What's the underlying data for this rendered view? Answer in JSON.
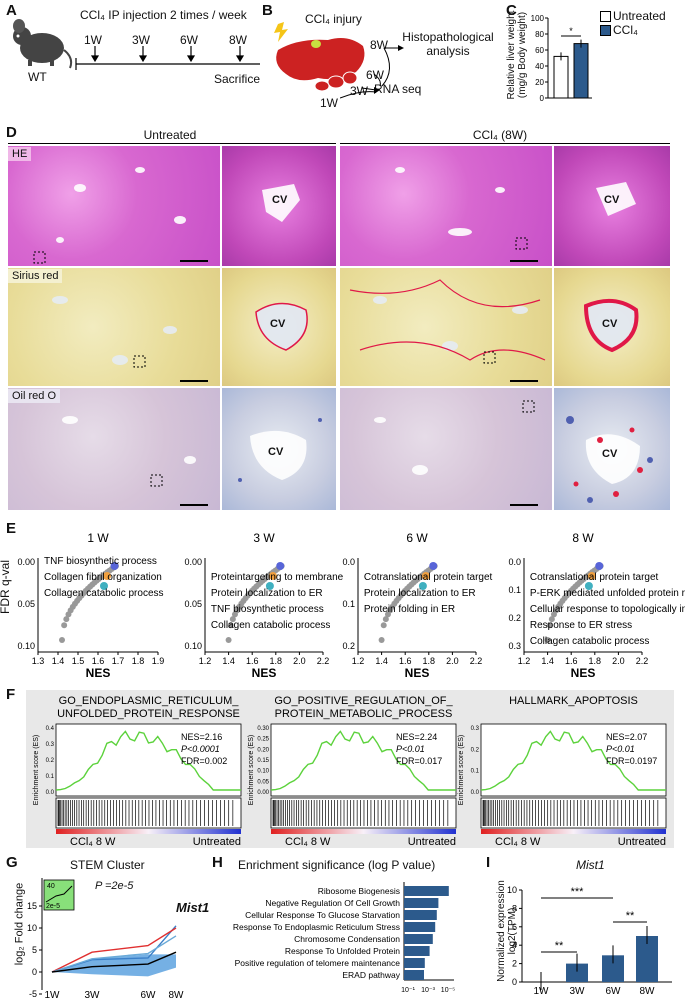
{
  "panels": {
    "A": "A",
    "B": "B",
    "C": "C",
    "D": "D",
    "E": "E",
    "F": "F",
    "G": "G",
    "H": "H",
    "I": "I"
  },
  "a": {
    "title": "CCl₄ IP injection 2 times / week",
    "mouse_label": "WT",
    "timepoints": [
      "1W",
      "3W",
      "6W",
      "8W"
    ],
    "end_label": "Sacrifice"
  },
  "b": {
    "injury": "CCl₄ injury",
    "histo": "Histopathological analysis",
    "rna": "RNA seq",
    "times": [
      "8W",
      "6W",
      "3W",
      "1W"
    ]
  },
  "c": {
    "ylabel": "Relative liver weight (mg/g Body weight)",
    "legend": [
      "Untreated",
      "CCl₄"
    ],
    "colors": [
      "#ffffff",
      "#2c5a8c"
    ],
    "sig": "*",
    "yticks": [
      "0",
      "20",
      "40",
      "60",
      "80",
      "100"
    ],
    "values": [
      52,
      68
    ]
  },
  "d": {
    "untreated": "Untreated",
    "ccl4": "CCl₄ (8W)",
    "rows": [
      "HE",
      "Sirius red",
      "Oil red O"
    ],
    "cv": "CV"
  },
  "e": {
    "ylabel": "FDR q-val",
    "xlabel": "NES",
    "plots": [
      {
        "title": "1 W",
        "yticks": [
          "0.00",
          "0.05",
          "0.10"
        ],
        "xticks": [
          "1.3",
          "1.4",
          "1.5",
          "1.6",
          "1.7",
          "1.8",
          "1.9"
        ],
        "labels": [
          "TNF biosynthetic process",
          "Collagen fibril organization",
          "Collagen catabolic process"
        ]
      },
      {
        "title": "3 W",
        "yticks": [
          "0.00",
          "0.05",
          "0.10"
        ],
        "xticks": [
          "1.2",
          "1.4",
          "1.6",
          "1.8",
          "2.0",
          "2.2"
        ],
        "labels": [
          "Proteintargeting to membrane",
          "Protein localization to ER",
          "TNF biosynthetic process",
          "Collagen catabolic process"
        ]
      },
      {
        "title": "6 W",
        "yticks": [
          "0.0",
          "0.1",
          "0.2"
        ],
        "xticks": [
          "1.2",
          "1.4",
          "1.6",
          "1.8",
          "2.0",
          "2.2"
        ],
        "labels": [
          "Cotranslational protein target",
          "Protein localization to ER",
          "Protein folding in ER"
        ]
      },
      {
        "title": "8 W",
        "yticks": [
          "0.0",
          "0.1",
          "0.2",
          "0.3"
        ],
        "xticks": [
          "1.2",
          "1.4",
          "1.6",
          "1.8",
          "2.0",
          "2.2"
        ],
        "labels": [
          "Cotranslational protein target",
          "P-ERK mediated unfolded protein response",
          "Cellular response to topologically incorrect protein",
          "Response to ER stress",
          "Collagen catabolic process"
        ]
      }
    ]
  },
  "f": {
    "ylabel": "Enrichment score (ES)",
    "left_label": "CCl₄  8 W",
    "right_label": "Untreated",
    "sets": [
      {
        "title": "GO_ENDOPLASMIC_RETICULUM_ UNFOLDED_PROTEIN_RESPONSE",
        "nes": "NES=2.16",
        "p": "P<0.0001",
        "fdr": "FDR=0.002",
        "yticks": [
          "0.4",
          "0.3",
          "0.2",
          "0.1",
          "0.0"
        ]
      },
      {
        "title": "GO_POSITIVE_REGULATION_OF_ PROTEIN_METABOLIC_PROCESS",
        "nes": "NES=2.24",
        "p": "P<0.01",
        "fdr": "FDR=0.017",
        "yticks": [
          "0.30",
          "0.25",
          "0.20",
          "0.15",
          "0.10",
          "0.05",
          "0.00"
        ]
      },
      {
        "title": "HALLMARK_APOPTOSIS",
        "nes": "NES=2.07",
        "p": "P<0.01",
        "fdr": "FDR=0.0197",
        "yticks": [
          "0.3",
          "0.2",
          "0.1",
          "0.0"
        ]
      }
    ]
  },
  "g": {
    "title": "STEM Cluster",
    "ylabel": "log₂ Fold change",
    "pval": "P =2e-5",
    "inset_top": "40",
    "inset_bottom": "2e-5",
    "gene": "Mist1",
    "xticks": [
      "1W",
      "3W",
      "6W",
      "8W"
    ],
    "yticks": [
      "15",
      "10",
      "5",
      "0",
      "-5"
    ]
  },
  "h": {
    "title": "Enrichment significance  (log P value)",
    "terms": [
      "Ribosome Biogenesis",
      "Negative Regulation Of Cell Growth",
      "Cellular Response To Glucose Starvation",
      "Response To Endoplasmic Reticulum Stress",
      "Chromosome Condensation",
      "Response To Unfolded Protein",
      "Positive regulation of telomere maintenance",
      "ERAD pathway"
    ],
    "values": [
      5.6,
      4.3,
      4.1,
      3.9,
      3.6,
      3.2,
      2.6,
      2.5
    ],
    "xticks": [
      "10⁻¹",
      "10⁻³",
      "10⁻⁵"
    ]
  },
  "i": {
    "title": "Mist1",
    "ylabel": "Normalized expression log2(TPM)",
    "xticks": [
      "1W",
      "3W",
      "6W",
      "8W"
    ],
    "yticks": [
      "0",
      "2",
      "4",
      "6",
      "8",
      "10"
    ],
    "values": [
      0,
      2.0,
      2.9,
      5.0
    ],
    "sig": [
      "***",
      "**",
      "**"
    ]
  }
}
